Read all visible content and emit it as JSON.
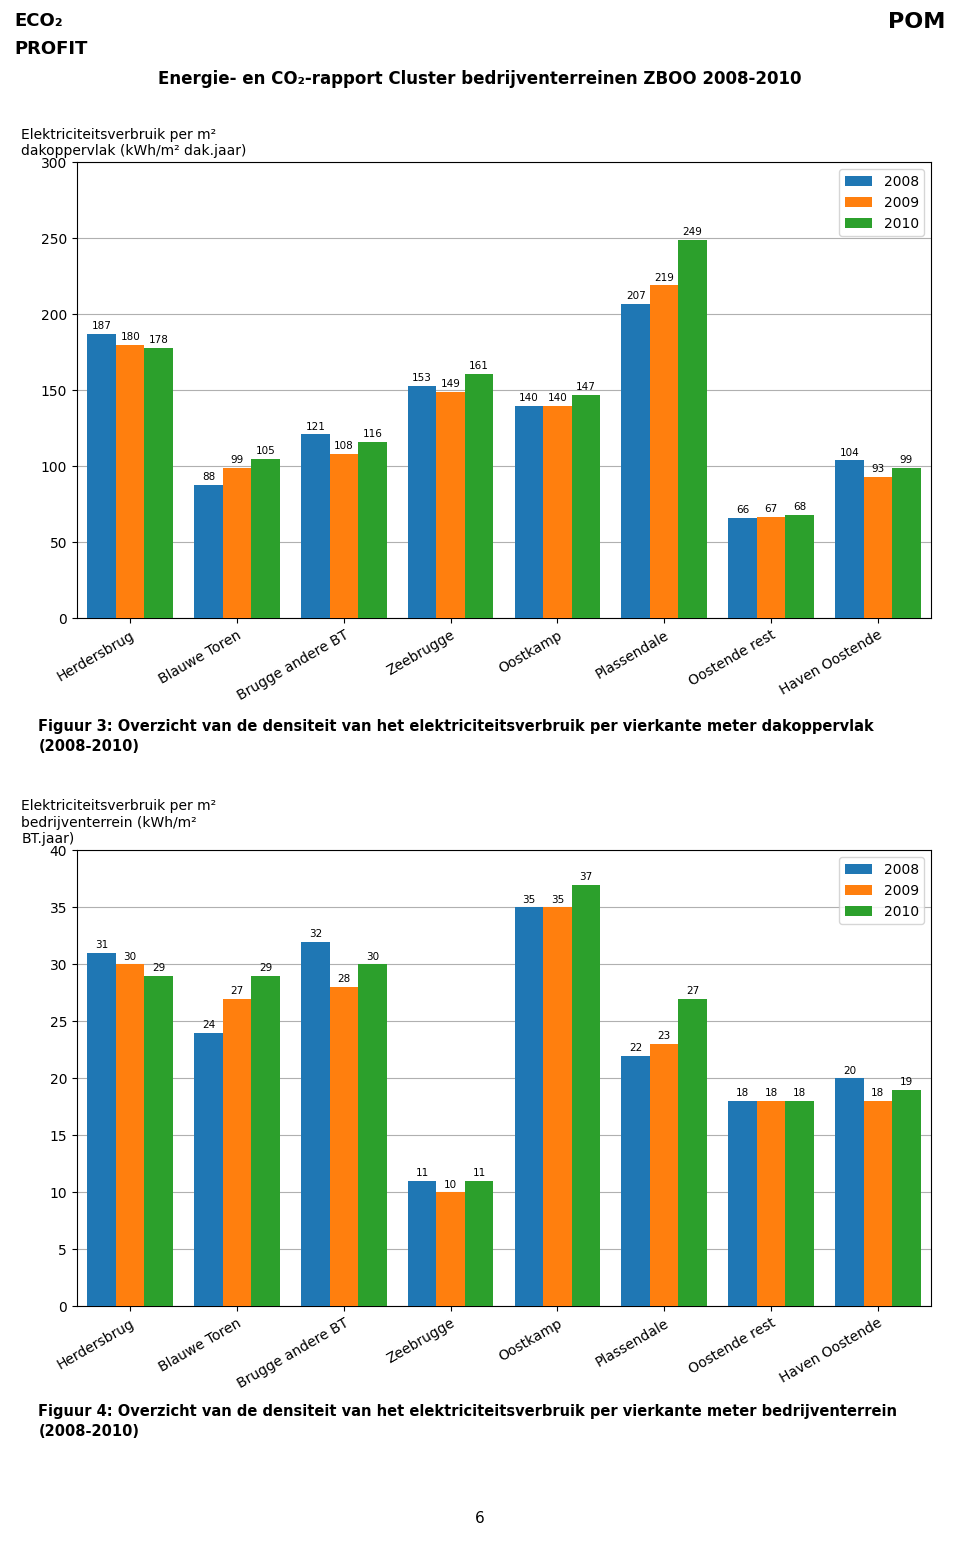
{
  "title": "Energie- en CO₂-rapport Cluster bedrijventerreinen ZBOO 2008-2010",
  "annotations": [
    "ECO₂",
    "PROFIT",
    "POM",
    "6"
  ],
  "chart_data": [
    {
      "type": "bar",
      "categories": [
        "Herdersbrug",
        "Blauwe Toren",
        "Brugge andere BT",
        "Zeebrugge",
        "Oostkamp",
        "Plassendale",
        "Oostende rest",
        "Haven Oostende"
      ],
      "series": [
        {
          "name": "2008",
          "values": [
            187,
            88,
            121,
            153,
            140,
            207,
            66,
            104
          ]
        },
        {
          "name": "2009",
          "values": [
            180,
            99,
            108,
            149,
            140,
            219,
            67,
            93
          ]
        },
        {
          "name": "2010",
          "values": [
            178,
            105,
            116,
            161,
            147,
            249,
            68,
            99
          ]
        }
      ],
      "y_label": "Elektriciteitsverbruik per m²\ndakoppervlak (kWh/m² dak.jaar)",
      "ylim": [
        0,
        300
      ],
      "yticks": [
        0,
        50,
        100,
        150,
        200,
        250,
        300
      ],
      "grid": true,
      "legend": "upper right",
      "data_labels": true,
      "annotations": [
        "Figuur 3: Overzicht van de densiteit van het elektriciteitsverbruik per vierkante meter dakoppervlak\n(2008-2010)"
      ]
    },
    {
      "type": "bar",
      "categories": [
        "Herdersbrug",
        "Blauwe Toren",
        "Brugge andere BT",
        "Zeebrugge",
        "Oostkamp",
        "Plassendale",
        "Oostende rest",
        "Haven Oostende"
      ],
      "series": [
        {
          "name": "2008",
          "values": [
            31,
            24,
            32,
            11,
            35,
            22,
            18,
            20
          ]
        },
        {
          "name": "2009",
          "values": [
            30,
            27,
            28,
            10,
            35,
            23,
            18,
            18
          ]
        },
        {
          "name": "2010",
          "values": [
            29,
            29,
            30,
            11,
            37,
            27,
            18,
            19
          ]
        }
      ],
      "y_label": "Elektriciteitsverbruik per m²\nbedrijventerrein (kWh/m²\nBT.jaar)",
      "ylim": [
        0,
        40
      ],
      "yticks": [
        0,
        5,
        10,
        15,
        20,
        25,
        30,
        35,
        40
      ],
      "grid": true,
      "legend": "upper right",
      "data_labels": true,
      "annotations": [
        "Figuur 4: Overzicht van de densiteit van het elektriciteitsverbruik per vierkante meter bedrijventerrein\n(2008-2010)"
      ]
    }
  ]
}
